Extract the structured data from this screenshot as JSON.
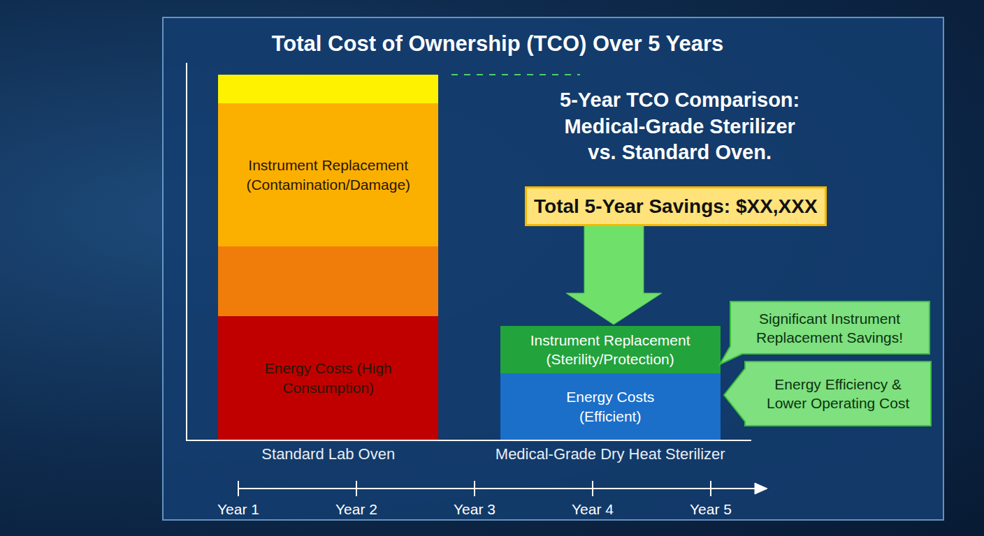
{
  "chart_data": {
    "type": "bar",
    "stacked": true,
    "title": "Total Cost of Ownership (TCO) Over 5 Years",
    "categories": [
      "Standard Lab Oven",
      "Medical-Grade Dry Heat Sterilizer"
    ],
    "series": [
      {
        "values": [
          177,
          95
        ],
        "colors": [
          "#c00000",
          "#1b6fc9"
        ],
        "labels": [
          "Energy Costs (High Consumption)",
          "Energy Costs (Efficient)"
        ]
      },
      {
        "values": [
          100,
          68
        ],
        "colors": [
          "#f07d0a",
          "#22a33c"
        ],
        "labels": [
          null,
          "Instrument Replacement (Sterility/Protection)"
        ]
      },
      {
        "values": [
          205,
          null
        ],
        "colors": [
          "#fbb000",
          null
        ],
        "labels": [
          "Instrument Replacement (Contamination/Damage)",
          null
        ]
      },
      {
        "values": [
          41,
          null
        ],
        "colors": [
          "#fff200",
          null
        ],
        "labels": [
          null,
          null
        ]
      }
    ],
    "ylim": [
      0,
      540
    ],
    "yticks": [],
    "tick_labels": "x",
    "grid": false,
    "heading": [
      "5-Year TCO Comparison:",
      "Medical-Grade Sterilizer",
      "vs. Standard Oven."
    ],
    "highlight": "Total 5-Year Savings: $XX,XXX",
    "callouts": [
      "Significant Instrument Replacement Savings!",
      "Energy Efficiency & Lower Operating Cost"
    ],
    "timeline": [
      "Year 1",
      "Year 2",
      "Year 3",
      "Year 4",
      "Year 5"
    ]
  }
}
